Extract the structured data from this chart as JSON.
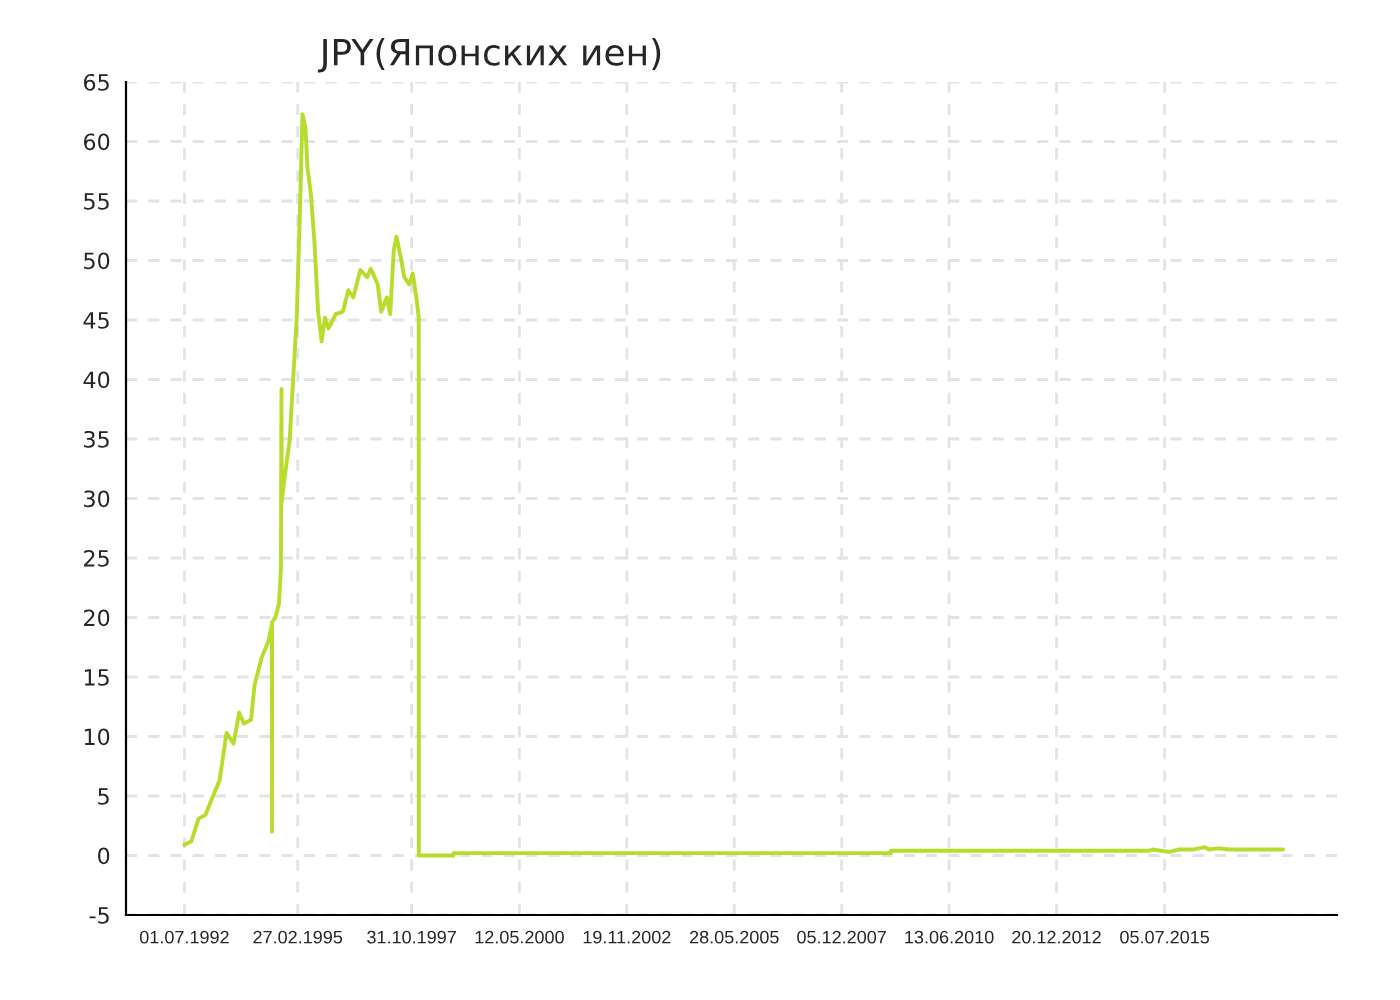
{
  "chart_data": {
    "type": "line",
    "title": "JPY(Японских иен)",
    "xlim": [
      "1991-02-16",
      "2019-07-22"
    ],
    "xticks": [
      {
        "value": "1992-07-01",
        "label": "01.07.1992"
      },
      {
        "value": "1995-02-27",
        "label": "27.02.1995"
      },
      {
        "value": "1997-10-31",
        "label": "31.10.1997"
      },
      {
        "value": "2000-05-12",
        "label": "12.05.2000"
      },
      {
        "value": "2002-11-19",
        "label": "19.11.2002"
      },
      {
        "value": "2005-05-28",
        "label": "28.05.2005"
      },
      {
        "value": "2007-12-05",
        "label": "05.12.2007"
      },
      {
        "value": "2010-06-13",
        "label": "13.06.2010"
      },
      {
        "value": "2012-12-20",
        "label": "20.12.2012"
      },
      {
        "value": "2015-07-05",
        "label": "05.07.2015"
      }
    ],
    "ylim": [
      -5,
      65
    ],
    "yticks": [
      -5,
      0,
      5,
      10,
      15,
      20,
      25,
      30,
      35,
      40,
      45,
      50,
      55,
      60,
      65
    ],
    "grid": true,
    "series": [
      {
        "color": "#b8dc2c",
        "x": [
          "1992-07-01",
          "1992-08-30",
          "1992-10-30",
          "1992-12-28",
          "1993-02-27",
          "1993-04-28",
          "1993-06-27",
          "1993-08-26",
          "1993-10-13",
          "1993-11-23",
          "1994-01-23",
          "1994-02-22",
          "1994-04-23",
          "1994-06-21",
          "1994-07-20",
          "1994-07-21",
          "1994-07-22",
          "1994-08-20",
          "1994-09-20",
          "1994-10-06",
          "1994-10-11",
          "1994-10-13",
          "1994-11-02",
          "1994-12-20",
          "1995-01-19",
          "1995-02-19",
          "1995-03-22",
          "1995-04-09",
          "1995-05-04",
          "1995-05-22",
          "1995-06-21",
          "1995-07-21",
          "1995-08-21",
          "1995-09-20",
          "1995-10-19",
          "1995-11-19",
          "1996-01-19",
          "1996-03-20",
          "1996-05-06",
          "1996-06-18",
          "1996-08-17",
          "1996-10-15",
          "1996-11-14",
          "1997-01-13",
          "1997-02-12",
          "1997-04-01",
          "1997-04-30",
          "1997-05-31",
          "1997-06-23",
          "1997-07-29",
          "1997-08-29",
          "1997-10-10",
          "1997-11-10",
          "1997-12-10",
          "1997-12-31",
          "1998-01-01",
          "1998-10-25",
          "1998-10-26",
          "2009-01-28",
          "2009-01-29",
          "2015-02-24",
          "2015-03-20",
          "2015-08-15",
          "2015-11-01",
          "2016-03-01",
          "2016-06-15",
          "2016-07-20",
          "2016-10-10",
          "2017-01-10",
          "2017-04-10",
          "2018-04-15"
        ],
        "values": [
          0.9,
          1.2,
          3.1,
          3.4,
          4.9,
          6.3,
          10.3,
          9.4,
          12.0,
          11.1,
          11.4,
          14.3,
          16.6,
          18.0,
          19.4,
          2.0,
          19.6,
          20.0,
          21.2,
          24.0,
          39.2,
          29.7,
          31.4,
          34.9,
          40.0,
          45.2,
          55.5,
          62.3,
          61.2,
          57.8,
          55.5,
          51.5,
          45.7,
          43.2,
          45.2,
          44.3,
          45.5,
          45.7,
          47.5,
          46.9,
          49.2,
          48.6,
          49.3,
          48.0,
          45.7,
          46.9,
          45.5,
          50.9,
          52.0,
          50.3,
          48.6,
          48.0,
          48.9,
          46.9,
          45.2,
          0.0,
          0.0,
          0.2,
          0.2,
          0.4,
          0.4,
          0.5,
          0.3,
          0.5,
          0.5,
          0.7,
          0.5,
          0.6,
          0.5,
          0.5,
          0.5
        ]
      }
    ]
  }
}
